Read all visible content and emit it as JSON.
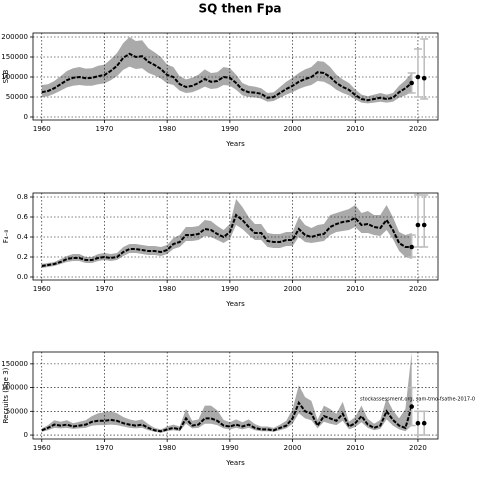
{
  "chart_data": [
    {
      "type": "line",
      "title": "SQ then Fpa",
      "xlabel": "Years",
      "ylabel": "SSB",
      "xlim": [
        1958.6,
        2023.2
      ],
      "xticks": [
        1960,
        1970,
        1980,
        1990,
        2000,
        2010,
        2020
      ],
      "ylim": [
        -7500,
        210000
      ],
      "yticks": [
        0,
        50000,
        100000,
        150000,
        200000
      ],
      "grid": true,
      "x": [
        1960,
        1961,
        1962,
        1963,
        1964,
        1965,
        1966,
        1967,
        1968,
        1969,
        1970,
        1971,
        1972,
        1973,
        1974,
        1975,
        1976,
        1977,
        1978,
        1979,
        1980,
        1981,
        1982,
        1983,
        1984,
        1985,
        1986,
        1987,
        1988,
        1989,
        1990,
        1991,
        1992,
        1993,
        1994,
        1995,
        1996,
        1997,
        1998,
        1999,
        2000,
        2001,
        2002,
        2003,
        2004,
        2005,
        2006,
        2007,
        2008,
        2009,
        2010,
        2011,
        2012,
        2013,
        2014,
        2015,
        2016,
        2017,
        2018,
        2019
      ],
      "series": [
        {
          "color": "#000000",
          "values": [
            62000,
            65000,
            72000,
            82000,
            92000,
            98000,
            100000,
            97000,
            98000,
            102000,
            105000,
            115000,
            128000,
            148000,
            158000,
            150000,
            152000,
            138000,
            130000,
            120000,
            105000,
            100000,
            82000,
            75000,
            78000,
            85000,
            95000,
            88000,
            90000,
            100000,
            98000,
            85000,
            68000,
            62000,
            61000,
            58000,
            48000,
            50000,
            60000,
            70000,
            78000,
            88000,
            95000,
            100000,
            112000,
            110000,
            100000,
            85000,
            75000,
            68000,
            55000,
            45000,
            42000,
            45000,
            48000,
            45000,
            48000,
            62000,
            72000,
            85000
          ]
        }
      ],
      "band": {
        "color": "#aaaaaa",
        "lower": [
          50000,
          52000,
          58000,
          66000,
          74000,
          78000,
          80000,
          78000,
          78000,
          82000,
          84000,
          92000,
          102000,
          118000,
          126000,
          120000,
          122000,
          110000,
          104000,
          96000,
          84000,
          80000,
          66000,
          60000,
          62000,
          68000,
          76000,
          70000,
          72000,
          80000,
          78000,
          68000,
          54000,
          50000,
          49000,
          46000,
          38000,
          40000,
          48000,
          56000,
          62000,
          70000,
          76000,
          80000,
          90000,
          88000,
          80000,
          68000,
          60000,
          54000,
          44000,
          36000,
          34000,
          36000,
          38000,
          36000,
          38000,
          48000,
          54000,
          62000
        ],
        "upper": [
          80000,
          82000,
          90000,
          102000,
          115000,
          122000,
          125000,
          121000,
          122000,
          128000,
          131000,
          144000,
          160000,
          185000,
          200000,
          190000,
          192000,
          172000,
          162000,
          150000,
          131000,
          125000,
          102000,
          94000,
          98000,
          106000,
          119000,
          110000,
          112000,
          125000,
          122000,
          106000,
          85000,
          78000,
          76000,
          72000,
          60000,
          62000,
          75000,
          88000,
          98000,
          110000,
          119000,
          125000,
          140000,
          138000,
          125000,
          106000,
          94000,
          85000,
          69000,
          56000,
          52000,
          56000,
          60000,
          56000,
          60000,
          78000,
          92000,
          110000
        ]
      },
      "points": {
        "color": "#000000",
        "error_color": "#bbbbbb",
        "x": [
          2019,
          2020,
          2021
        ],
        "values": [
          85000,
          100000,
          97000
        ],
        "lower": [
          60000,
          50000,
          45000
        ],
        "upper": [
          110000,
          170000,
          195000
        ]
      }
    },
    {
      "type": "line",
      "xlabel": "Years",
      "ylabel": "F₄₋₈",
      "xlim": [
        1958.6,
        2023.2
      ],
      "xticks": [
        1960,
        1970,
        1980,
        1990,
        2000,
        2010,
        2020
      ],
      "ylim": [
        -0.03,
        0.84
      ],
      "yticks": [
        {
          "value": 0,
          "label": "0.0"
        },
        0.2,
        0.4,
        0.6,
        0.8
      ],
      "grid": true,
      "x": [
        1960,
        1961,
        1962,
        1963,
        1964,
        1965,
        1966,
        1967,
        1968,
        1969,
        1970,
        1971,
        1972,
        1973,
        1974,
        1975,
        1976,
        1977,
        1978,
        1979,
        1980,
        1981,
        1982,
        1983,
        1984,
        1985,
        1986,
        1987,
        1988,
        1989,
        1990,
        1991,
        1992,
        1993,
        1994,
        1995,
        1996,
        1997,
        1998,
        1999,
        2000,
        2001,
        2002,
        2003,
        2004,
        2005,
        2006,
        2007,
        2008,
        2009,
        2010,
        2011,
        2012,
        2013,
        2014,
        2015,
        2016,
        2017,
        2018,
        2019
      ],
      "series": [
        {
          "color": "#000000",
          "values": [
            0.11,
            0.12,
            0.13,
            0.15,
            0.18,
            0.19,
            0.19,
            0.17,
            0.17,
            0.19,
            0.2,
            0.19,
            0.2,
            0.25,
            0.28,
            0.28,
            0.27,
            0.26,
            0.26,
            0.25,
            0.27,
            0.33,
            0.35,
            0.42,
            0.42,
            0.43,
            0.48,
            0.47,
            0.43,
            0.4,
            0.45,
            0.62,
            0.57,
            0.5,
            0.44,
            0.44,
            0.36,
            0.35,
            0.35,
            0.37,
            0.37,
            0.48,
            0.42,
            0.4,
            0.42,
            0.43,
            0.5,
            0.53,
            0.55,
            0.56,
            0.59,
            0.52,
            0.53,
            0.5,
            0.49,
            0.57,
            0.47,
            0.34,
            0.3,
            0.3
          ]
        }
      ],
      "band": {
        "color": "#aaaaaa",
        "lower": [
          0.09,
          0.1,
          0.11,
          0.13,
          0.15,
          0.16,
          0.16,
          0.14,
          0.14,
          0.16,
          0.17,
          0.16,
          0.17,
          0.21,
          0.24,
          0.24,
          0.23,
          0.22,
          0.22,
          0.21,
          0.23,
          0.28,
          0.3,
          0.36,
          0.36,
          0.37,
          0.41,
          0.4,
          0.37,
          0.34,
          0.38,
          0.52,
          0.48,
          0.42,
          0.37,
          0.37,
          0.3,
          0.29,
          0.29,
          0.31,
          0.31,
          0.4,
          0.35,
          0.34,
          0.35,
          0.36,
          0.42,
          0.45,
          0.46,
          0.47,
          0.5,
          0.44,
          0.44,
          0.42,
          0.41,
          0.47,
          0.38,
          0.26,
          0.2,
          0.18
        ],
        "upper": [
          0.13,
          0.14,
          0.15,
          0.18,
          0.21,
          0.23,
          0.23,
          0.2,
          0.2,
          0.23,
          0.24,
          0.23,
          0.24,
          0.3,
          0.33,
          0.33,
          0.32,
          0.31,
          0.31,
          0.3,
          0.32,
          0.39,
          0.42,
          0.5,
          0.5,
          0.51,
          0.57,
          0.56,
          0.51,
          0.47,
          0.53,
          0.78,
          0.7,
          0.6,
          0.53,
          0.53,
          0.44,
          0.43,
          0.43,
          0.45,
          0.45,
          0.6,
          0.52,
          0.49,
          0.52,
          0.53,
          0.62,
          0.64,
          0.66,
          0.68,
          0.72,
          0.64,
          0.66,
          0.62,
          0.62,
          0.72,
          0.6,
          0.45,
          0.42,
          0.44
        ]
      },
      "points": {
        "color": "#000000",
        "error_color": "#bbbbbb",
        "x": [
          2019,
          2020,
          2021
        ],
        "values": [
          0.3,
          0.52,
          0.52
        ],
        "lower": [
          0.2,
          0.3,
          0.3
        ],
        "upper": [
          0.42,
          0.82,
          0.82
        ]
      }
    },
    {
      "type": "line",
      "xlabel": "Years",
      "ylabel": "Recruits (age 3)",
      "annotation": "stockassessment.org, sam-tmo-fsathe-2017-0",
      "xlim": [
        1958.6,
        2023.2
      ],
      "xticks": [
        1960,
        1970,
        1980,
        1990,
        2000,
        2010,
        2020
      ],
      "ylim": [
        -8300,
        175000
      ],
      "yticks": [
        0,
        50000,
        100000,
        150000
      ],
      "grid": true,
      "x": [
        1960,
        1961,
        1962,
        1963,
        1964,
        1965,
        1966,
        1967,
        1968,
        1969,
        1970,
        1971,
        1972,
        1973,
        1974,
        1975,
        1976,
        1977,
        1978,
        1979,
        1980,
        1981,
        1982,
        1983,
        1984,
        1985,
        1986,
        1987,
        1988,
        1989,
        1990,
        1991,
        1992,
        1993,
        1994,
        1995,
        1996,
        1997,
        1998,
        1999,
        2000,
        2001,
        2002,
        2003,
        2004,
        2005,
        2006,
        2007,
        2008,
        2009,
        2010,
        2011,
        2012,
        2013,
        2014,
        2015,
        2016,
        2017,
        2018,
        2019
      ],
      "series": [
        {
          "color": "#000000",
          "values": [
            10000,
            15000,
            22000,
            20000,
            22000,
            18000,
            20000,
            22000,
            28000,
            30000,
            30000,
            32000,
            30000,
            25000,
            22000,
            20000,
            22000,
            15000,
            10000,
            8000,
            12000,
            15000,
            12000,
            35000,
            20000,
            22000,
            35000,
            35000,
            30000,
            20000,
            18000,
            22000,
            18000,
            22000,
            15000,
            12000,
            12000,
            10000,
            15000,
            20000,
            35000,
            68000,
            50000,
            45000,
            20000,
            40000,
            35000,
            30000,
            45000,
            18000,
            25000,
            40000,
            22000,
            15000,
            20000,
            50000,
            32000,
            20000,
            15000,
            60000
          ]
        }
      ],
      "band": {
        "color": "#aaaaaa",
        "lower": [
          7000,
          10000,
          15000,
          14000,
          15000,
          13000,
          14000,
          15000,
          20000,
          21000,
          21000,
          22000,
          21000,
          18000,
          15000,
          14000,
          15000,
          10000,
          7000,
          5000,
          8000,
          10000,
          8000,
          24000,
          14000,
          15000,
          24000,
          24000,
          21000,
          14000,
          12000,
          15000,
          12000,
          15000,
          10000,
          8000,
          8000,
          7000,
          10000,
          14000,
          24000,
          46000,
          35000,
          31000,
          14000,
          28000,
          24000,
          21000,
          30000,
          12000,
          17000,
          27000,
          15000,
          10000,
          13000,
          33000,
          20000,
          12000,
          8000,
          20000
        ],
        "upper": [
          14000,
          21000,
          31000,
          28000,
          31000,
          25000,
          28000,
          31000,
          40000,
          46000,
          48000,
          50000,
          46000,
          38000,
          33000,
          30000,
          33000,
          23000,
          15000,
          12000,
          18000,
          22000,
          18000,
          55000,
          30000,
          33000,
          62000,
          62000,
          52000,
          32000,
          27000,
          33000,
          27000,
          33000,
          23000,
          18000,
          18000,
          15000,
          22000,
          30000,
          55000,
          105000,
          80000,
          72000,
          32000,
          62000,
          55000,
          45000,
          70000,
          28000,
          38000,
          62000,
          34000,
          24000,
          32000,
          78000,
          52000,
          35000,
          55000,
          175000
        ]
      },
      "points": {
        "color": "#000000",
        "error_color": "#bbbbbb",
        "x": [
          2019,
          2020,
          2021
        ],
        "values": [
          60000,
          25000,
          25000
        ],
        "lower": [
          20000,
          0,
          0
        ],
        "upper": [
          100000,
          50000,
          50000
        ]
      }
    }
  ]
}
